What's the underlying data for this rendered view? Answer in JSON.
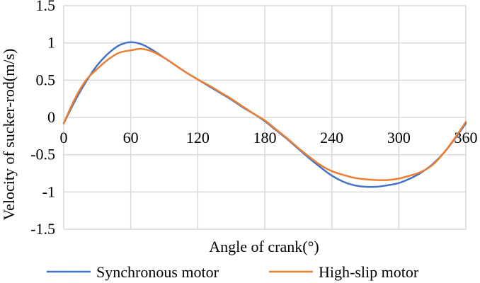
{
  "chart_data": {
    "type": "line",
    "xlabel": "Angle of crank(°)",
    "ylabel": "Velocity of sucker-rod(m/s)",
    "xlim": [
      0,
      360
    ],
    "ylim": [
      -1.5,
      1.5
    ],
    "x_ticks": [
      "0",
      "60",
      "120",
      "180",
      "240",
      "300",
      "360"
    ],
    "y_ticks": [
      "1.5",
      "1",
      "0.5",
      "0",
      "-0.5",
      "-1",
      "-1.5"
    ],
    "grid": true,
    "legend_position": "bottom",
    "series": [
      {
        "name": "Synchronous motor",
        "color": "#4472c4",
        "x": [
          0,
          10,
          20,
          30,
          40,
          50,
          60,
          70,
          80,
          90,
          100,
          110,
          120,
          130,
          140,
          150,
          160,
          170,
          180,
          190,
          200,
          210,
          220,
          230,
          240,
          250,
          260,
          270,
          280,
          290,
          300,
          310,
          320,
          330,
          340,
          350,
          360
        ],
        "y": [
          -0.08,
          0.22,
          0.48,
          0.7,
          0.86,
          0.97,
          1.01,
          0.98,
          0.9,
          0.8,
          0.7,
          0.6,
          0.51,
          0.42,
          0.33,
          0.24,
          0.14,
          0.05,
          -0.05,
          -0.17,
          -0.29,
          -0.42,
          -0.55,
          -0.67,
          -0.78,
          -0.86,
          -0.91,
          -0.93,
          -0.93,
          -0.91,
          -0.88,
          -0.82,
          -0.74,
          -0.63,
          -0.48,
          -0.29,
          -0.08
        ]
      },
      {
        "name": "High-slip motor",
        "color": "#ed7d31",
        "x": [
          0,
          10,
          20,
          30,
          40,
          50,
          60,
          70,
          80,
          90,
          100,
          110,
          120,
          130,
          140,
          150,
          160,
          170,
          180,
          190,
          200,
          210,
          220,
          230,
          240,
          250,
          260,
          270,
          280,
          290,
          300,
          310,
          320,
          330,
          340,
          350,
          360
        ],
        "y": [
          -0.08,
          0.25,
          0.5,
          0.65,
          0.78,
          0.87,
          0.9,
          0.92,
          0.88,
          0.8,
          0.7,
          0.6,
          0.51,
          0.43,
          0.34,
          0.25,
          0.15,
          0.05,
          -0.04,
          -0.16,
          -0.28,
          -0.41,
          -0.53,
          -0.64,
          -0.72,
          -0.77,
          -0.81,
          -0.83,
          -0.84,
          -0.84,
          -0.82,
          -0.78,
          -0.73,
          -0.64,
          -0.48,
          -0.28,
          -0.06
        ]
      }
    ]
  }
}
